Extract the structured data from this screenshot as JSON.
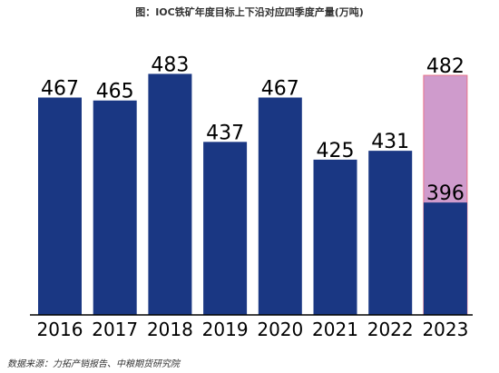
{
  "title": "图：IOC铁矿年度目标上下沿对应四季度产量(万吨)",
  "source": "数据来源：力拓产销报告、中粮期货研究院",
  "colors": {
    "bar": "#1a3783",
    "upper": "#cf9bcc",
    "upper_border": "#e8738a"
  },
  "chart_data": {
    "type": "bar",
    "categories": [
      "2016",
      "2017",
      "2018",
      "2019",
      "2020",
      "2021",
      "2022",
      "2023"
    ],
    "values": [
      467,
      465,
      483,
      437,
      467,
      425,
      431,
      396
    ],
    "upper": {
      "category": "2023",
      "value": 482
    },
    "ylim": [
      320,
      490
    ]
  }
}
